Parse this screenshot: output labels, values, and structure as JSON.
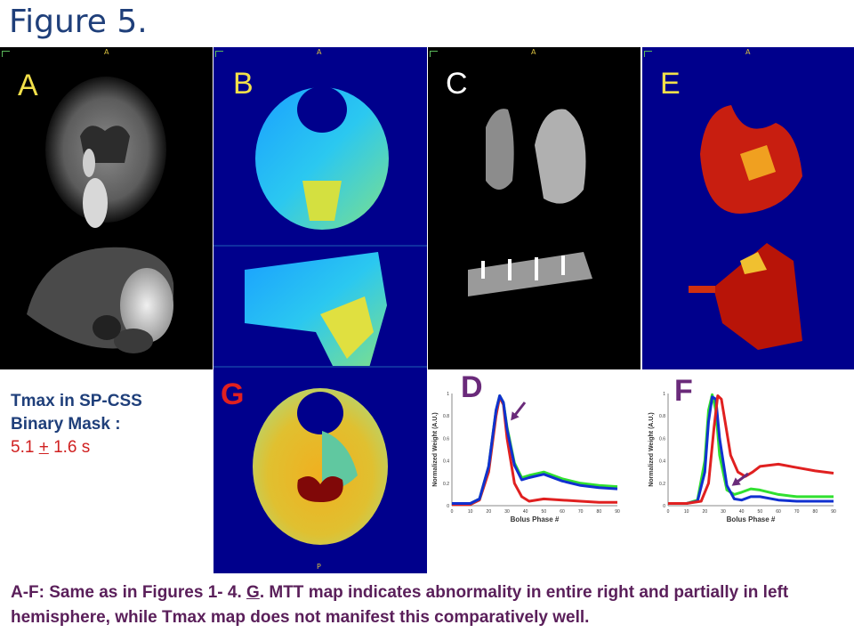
{
  "figure_title": "Figure 5.",
  "panels": {
    "A": "A",
    "B": "B",
    "C": "C",
    "D": "D",
    "E": "E",
    "F": "F",
    "G": "G",
    "orient_anterior": "A",
    "orient_posterior": "P"
  },
  "note": {
    "line1": "Tmax in SP-CSS",
    "line2": "Binary Mask :",
    "value_a": "5.1 ",
    "pm": "+",
    "value_b": " 1.6 s"
  },
  "caption": {
    "part1": "A-F: Same as in Figures 1- 4. ",
    "g": "G",
    "part2": ". MTT map indicates abnormality in entire right and partially in left hemisphere, while Tmax map does not manifest this comparatively well."
  },
  "charts": {
    "xlabel": "Bolus Phase #",
    "ylabel": "Normalized Weight (A.U.)",
    "xticks": [
      "0",
      "10",
      "20",
      "30",
      "40",
      "50",
      "60",
      "70",
      "80",
      "90"
    ],
    "yticks": [
      "0",
      "0.2",
      "0.4",
      "0.6",
      "0.8",
      "1"
    ]
  },
  "colors": {
    "title": "#1f3f7a",
    "panel_label_white": "#ffffff",
    "panel_label_yellow": "#f2e04a",
    "panel_label_red": "#e02020",
    "panel_label_purple": "#6a2a7a",
    "map_background": "#00008c",
    "arrow": "#6a2a7a",
    "series_red": "#e02020",
    "series_green": "#30e030",
    "series_blue": "#1030d0"
  },
  "chart_data": [
    {
      "type": "line",
      "panel": "D",
      "xlabel": "Bolus Phase #",
      "ylabel": "Normalized Weight (A.U.)",
      "xlim": [
        0,
        90
      ],
      "ylim": [
        0,
        1
      ],
      "series": [
        {
          "color": "red",
          "x": [
            0,
            10,
            15,
            20,
            24,
            26,
            28,
            30,
            34,
            38,
            42,
            50,
            60,
            70,
            80,
            90
          ],
          "y": [
            0.01,
            0.01,
            0.05,
            0.3,
            0.8,
            0.97,
            0.9,
            0.6,
            0.2,
            0.08,
            0.04,
            0.06,
            0.05,
            0.04,
            0.03,
            0.03
          ]
        },
        {
          "color": "green",
          "x": [
            0,
            10,
            15,
            20,
            24,
            26,
            28,
            30,
            34,
            38,
            42,
            50,
            60,
            70,
            80,
            90
          ],
          "y": [
            0.02,
            0.02,
            0.06,
            0.35,
            0.85,
            0.98,
            0.92,
            0.7,
            0.38,
            0.25,
            0.27,
            0.3,
            0.24,
            0.2,
            0.18,
            0.17
          ]
        },
        {
          "color": "blue",
          "x": [
            0,
            10,
            15,
            20,
            24,
            26,
            28,
            30,
            34,
            38,
            42,
            50,
            60,
            70,
            80,
            90
          ],
          "y": [
            0.02,
            0.02,
            0.06,
            0.35,
            0.85,
            0.98,
            0.92,
            0.68,
            0.36,
            0.23,
            0.25,
            0.28,
            0.22,
            0.18,
            0.16,
            0.15
          ]
        }
      ]
    },
    {
      "type": "line",
      "panel": "F",
      "xlabel": "Bolus Phase #",
      "ylabel": "Normalized Weight (A.U.)",
      "xlim": [
        0,
        90
      ],
      "ylim": [
        0,
        1
      ],
      "series": [
        {
          "color": "green",
          "x": [
            0,
            10,
            16,
            20,
            22,
            24,
            26,
            28,
            32,
            36,
            40,
            45,
            50,
            60,
            70,
            80,
            90
          ],
          "y": [
            0.02,
            0.02,
            0.05,
            0.4,
            0.85,
            0.99,
            0.85,
            0.45,
            0.14,
            0.1,
            0.12,
            0.15,
            0.14,
            0.1,
            0.08,
            0.08,
            0.08
          ]
        },
        {
          "color": "blue",
          "x": [
            0,
            10,
            16,
            20,
            22,
            24,
            26,
            28,
            32,
            36,
            40,
            45,
            50,
            60,
            70,
            80,
            90
          ],
          "y": [
            0.02,
            0.02,
            0.04,
            0.3,
            0.75,
            0.97,
            0.95,
            0.6,
            0.18,
            0.06,
            0.05,
            0.08,
            0.08,
            0.05,
            0.04,
            0.04,
            0.04
          ]
        },
        {
          "color": "red",
          "x": [
            0,
            10,
            18,
            22,
            25,
            27,
            29,
            31,
            34,
            38,
            42,
            46,
            50,
            60,
            70,
            80,
            90
          ],
          "y": [
            0.02,
            0.02,
            0.04,
            0.2,
            0.7,
            0.98,
            0.95,
            0.75,
            0.45,
            0.3,
            0.26,
            0.3,
            0.35,
            0.37,
            0.34,
            0.31,
            0.29
          ]
        }
      ]
    }
  ]
}
